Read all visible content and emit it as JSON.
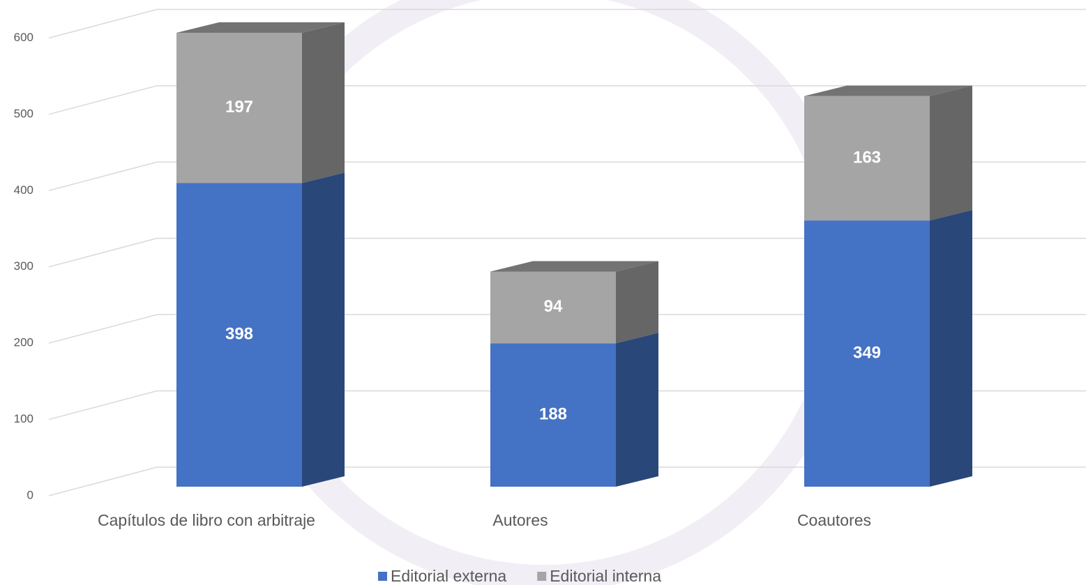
{
  "chart_data": {
    "type": "bar",
    "stacked": true,
    "categories": [
      "Capítulos de libro con arbitraje",
      "Autores",
      "Coautores"
    ],
    "series": [
      {
        "name": "Editorial externa",
        "color": "#4472c4",
        "values": [
          398,
          188,
          349
        ]
      },
      {
        "name": "Editorial interna",
        "color": "#a5a5a5",
        "values": [
          197,
          94,
          163
        ]
      }
    ],
    "ylim": [
      0,
      600
    ],
    "yticks": [
      0,
      100,
      200,
      300,
      400,
      500,
      600
    ],
    "grid": true,
    "legend": "bottom"
  }
}
